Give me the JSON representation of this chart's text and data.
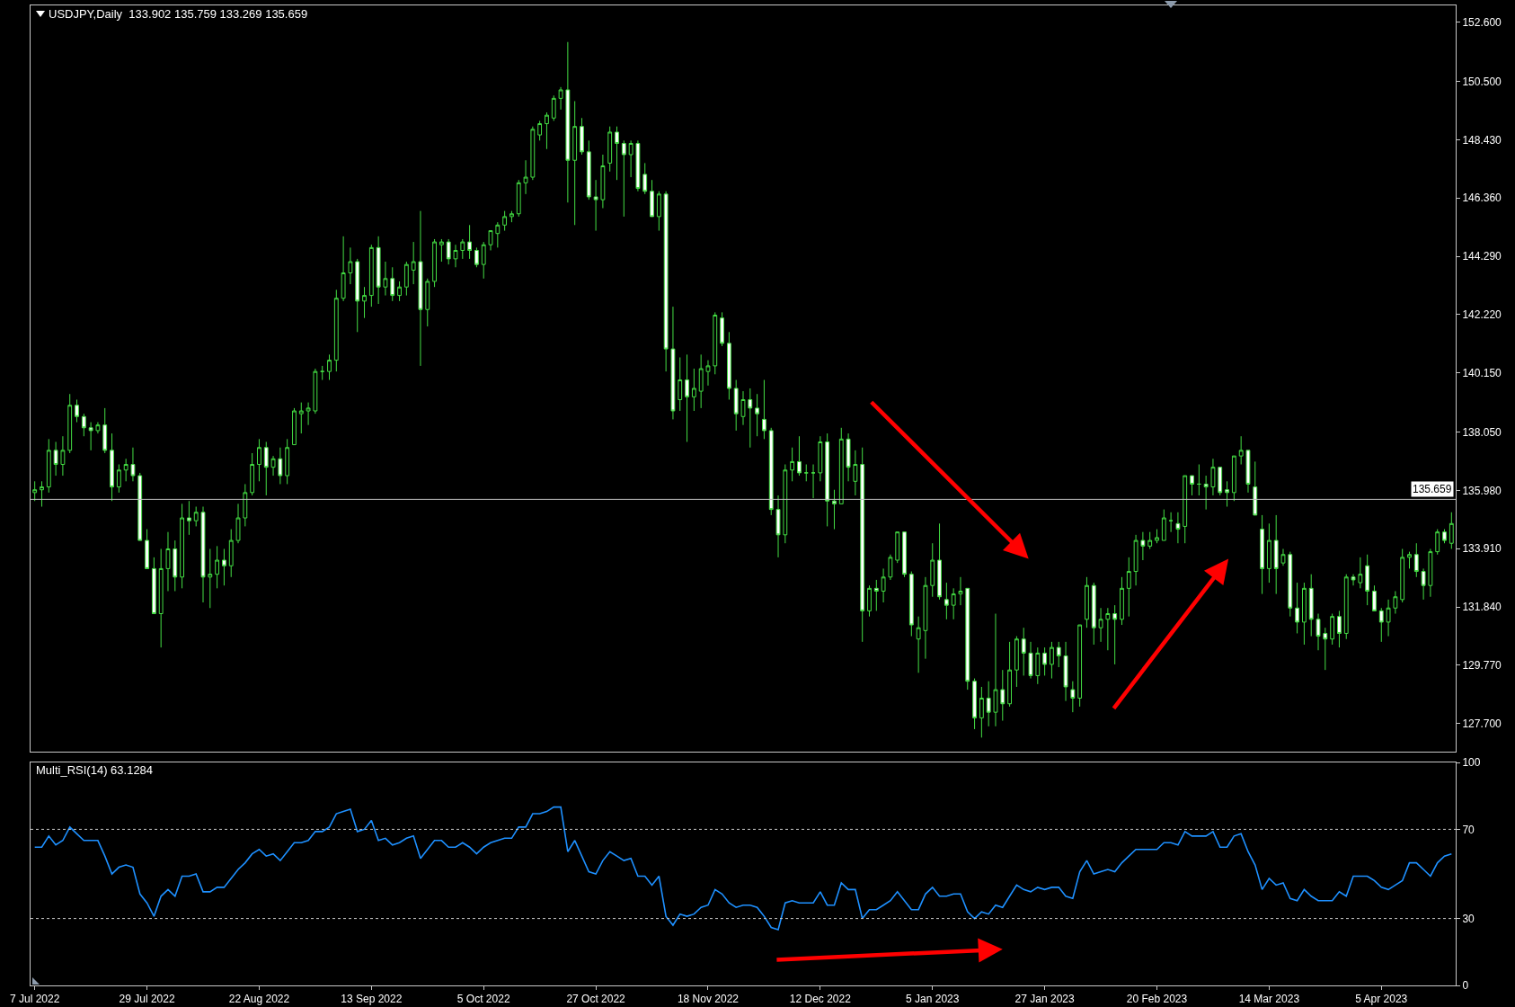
{
  "chart_data": [
    {
      "type": "candlestick",
      "title": "USDJPY,Daily  133.902 135.759 133.269 135.659",
      "categories": [
        null,
        null,
        null,
        null,
        null,
        null,
        null,
        null,
        null,
        null,
        null,
        null,
        null,
        null,
        null,
        null,
        null,
        null,
        null,
        null,
        null,
        null,
        null,
        null,
        null,
        null,
        null,
        null,
        null,
        null,
        null,
        null,
        null,
        null,
        null,
        null,
        null,
        null,
        null,
        null,
        null,
        null,
        null,
        null,
        null,
        null,
        null,
        null,
        null,
        null,
        null,
        null,
        null,
        null,
        null,
        null,
        null,
        null,
        null,
        null,
        null,
        null,
        null,
        null,
        null,
        null,
        null,
        null,
        null,
        null,
        null,
        null,
        null,
        null,
        null,
        null,
        null,
        null,
        null,
        null,
        null,
        null,
        null,
        null,
        null,
        null,
        null,
        null,
        null,
        null,
        null,
        null,
        null,
        null,
        null,
        null,
        null,
        null,
        null,
        null,
        null,
        null,
        null,
        null,
        null,
        null,
        null,
        null,
        null,
        null,
        null,
        null,
        null,
        null,
        null,
        null,
        null,
        null,
        null,
        null,
        null,
        null,
        null,
        null,
        null,
        null,
        null,
        null,
        null,
        null,
        null,
        null,
        null,
        null,
        null,
        null,
        null,
        null,
        null,
        null,
        null,
        null,
        null,
        null,
        null,
        null,
        null,
        null,
        null,
        null,
        null,
        null,
        null,
        null,
        null,
        null,
        null,
        null,
        null,
        null,
        null,
        null,
        null,
        null,
        null,
        null,
        null,
        null,
        null,
        null,
        null,
        null,
        null,
        null,
        null,
        null,
        null,
        null,
        null,
        null,
        null,
        null,
        null,
        null,
        null,
        null,
        null,
        null,
        null,
        null,
        null,
        null,
        null,
        null,
        null,
        null,
        null,
        null,
        null,
        null,
        null,
        null,
        null
      ],
      "ohlc": [
        [
          135.9,
          136.3,
          135.6,
          136.0
        ],
        [
          136.0,
          136.3,
          135.4,
          136.1
        ],
        [
          136.1,
          137.8,
          135.9,
          137.4
        ],
        [
          137.4,
          137.7,
          136.5,
          136.9
        ],
        [
          136.9,
          137.9,
          136.5,
          137.4
        ],
        [
          137.4,
          139.4,
          137.3,
          139.0
        ],
        [
          139.0,
          139.2,
          138.4,
          138.6
        ],
        [
          138.6,
          138.7,
          137.9,
          138.2
        ],
        [
          138.2,
          138.4,
          137.4,
          138.1
        ],
        [
          138.1,
          138.4,
          138.0,
          138.3
        ],
        [
          138.3,
          138.9,
          137.3,
          137.4
        ],
        [
          137.4,
          138.0,
          135.6,
          136.1
        ],
        [
          136.1,
          136.9,
          135.9,
          136.7
        ],
        [
          136.7,
          137.1,
          136.3,
          136.9
        ],
        [
          136.9,
          137.5,
          136.3,
          136.5
        ],
        [
          136.5,
          136.6,
          134.2,
          134.2
        ],
        [
          134.2,
          134.6,
          133.2,
          133.2
        ],
        [
          133.2,
          133.6,
          131.6,
          131.6
        ],
        [
          131.6,
          133.9,
          130.4,
          133.2
        ],
        [
          133.2,
          134.5,
          132.4,
          133.9
        ],
        [
          133.9,
          134.2,
          132.4,
          132.9
        ],
        [
          132.9,
          135.5,
          132.5,
          135.0
        ],
        [
          135.0,
          135.6,
          134.4,
          134.9
        ],
        [
          134.9,
          135.4,
          134.7,
          135.2
        ],
        [
          135.2,
          135.4,
          132.0,
          132.9
        ],
        [
          132.9,
          133.9,
          131.8,
          133.0
        ],
        [
          133.0,
          134.0,
          132.5,
          133.5
        ],
        [
          133.5,
          133.9,
          132.6,
          133.3
        ],
        [
          133.3,
          134.6,
          132.9,
          134.2
        ],
        [
          134.2,
          135.5,
          134.1,
          135.0
        ],
        [
          135.0,
          136.2,
          134.7,
          135.9
        ],
        [
          135.9,
          137.3,
          135.8,
          136.9
        ],
        [
          136.9,
          137.8,
          136.3,
          137.5
        ],
        [
          137.5,
          137.7,
          135.8,
          136.8
        ],
        [
          136.8,
          137.2,
          136.5,
          137.1
        ],
        [
          137.1,
          137.5,
          136.2,
          136.5
        ],
        [
          136.5,
          137.8,
          136.2,
          137.5
        ],
        [
          137.6,
          138.9,
          137.6,
          138.8
        ],
        [
          138.7,
          139.1,
          138.0,
          138.8
        ],
        [
          138.8,
          139.1,
          138.3,
          138.9
        ],
        [
          138.8,
          140.3,
          138.7,
          140.2
        ],
        [
          140.2,
          140.4,
          139.9,
          140.2
        ],
        [
          140.2,
          140.8,
          139.9,
          140.6
        ],
        [
          140.6,
          143.1,
          140.2,
          142.8
        ],
        [
          142.8,
          145.0,
          142.7,
          143.7
        ],
        [
          143.7,
          144.6,
          143.3,
          144.1
        ],
        [
          144.1,
          144.2,
          141.6,
          142.7
        ],
        [
          142.7,
          143.2,
          142.1,
          142.9
        ],
        [
          142.9,
          144.7,
          142.5,
          144.6
        ],
        [
          144.6,
          145.0,
          142.6,
          143.2
        ],
        [
          143.2,
          144.1,
          142.9,
          143.5
        ],
        [
          143.5,
          143.9,
          142.7,
          142.9
        ],
        [
          142.9,
          143.4,
          142.7,
          143.2
        ],
        [
          143.2,
          144.1,
          142.9,
          144.0
        ],
        [
          143.8,
          144.8,
          143.3,
          144.1
        ],
        [
          144.1,
          145.9,
          140.4,
          142.4
        ],
        [
          142.4,
          143.5,
          141.8,
          143.4
        ],
        [
          143.4,
          144.9,
          143.2,
          144.8
        ],
        [
          144.7,
          144.9,
          144.1,
          144.8
        ],
        [
          144.8,
          144.9,
          144.0,
          144.2
        ],
        [
          144.2,
          144.7,
          143.9,
          144.5
        ],
        [
          144.5,
          144.9,
          144.2,
          144.8
        ],
        [
          144.8,
          145.4,
          144.2,
          144.5
        ],
        [
          144.5,
          144.6,
          143.9,
          144.0
        ],
        [
          144.0,
          144.8,
          143.5,
          144.7
        ],
        [
          144.7,
          145.2,
          144.5,
          145.2
        ],
        [
          145.1,
          145.5,
          144.6,
          145.4
        ],
        [
          145.4,
          145.9,
          145.2,
          145.7
        ],
        [
          145.7,
          145.9,
          145.5,
          145.8
        ],
        [
          145.8,
          147.0,
          145.7,
          146.9
        ],
        [
          146.9,
          147.7,
          146.5,
          147.1
        ],
        [
          147.1,
          148.9,
          147.0,
          148.8
        ],
        [
          148.6,
          149.1,
          148.4,
          149.0
        ],
        [
          149.0,
          149.4,
          148.1,
          149.3
        ],
        [
          149.2,
          150.0,
          149.1,
          149.9
        ],
        [
          149.9,
          150.3,
          149.5,
          150.2
        ],
        [
          150.2,
          151.9,
          146.2,
          147.7
        ],
        [
          147.7,
          149.8,
          145.4,
          148.9
        ],
        [
          148.9,
          149.2,
          147.9,
          148.0
        ],
        [
          148.0,
          148.4,
          146.3,
          146.4
        ],
        [
          146.4,
          147.0,
          145.2,
          146.3
        ],
        [
          146.3,
          147.9,
          146.0,
          147.5
        ],
        [
          147.6,
          148.9,
          147.3,
          148.7
        ],
        [
          148.7,
          148.9,
          147.0,
          148.3
        ],
        [
          148.3,
          148.4,
          145.7,
          147.9
        ],
        [
          147.9,
          148.4,
          147.1,
          148.3
        ],
        [
          148.3,
          148.4,
          146.6,
          146.7
        ],
        [
          147.2,
          147.6,
          146.5,
          146.6
        ],
        [
          146.6,
          147.0,
          145.7,
          145.7
        ],
        [
          145.7,
          146.6,
          145.2,
          146.5
        ],
        [
          146.5,
          146.6,
          140.2,
          141.0
        ],
        [
          141.0,
          142.5,
          138.5,
          138.8
        ],
        [
          139.2,
          140.7,
          138.8,
          139.9
        ],
        [
          139.9,
          140.8,
          137.7,
          139.3
        ],
        [
          139.3,
          140.3,
          138.8,
          139.6
        ],
        [
          139.5,
          140.8,
          138.9,
          140.3
        ],
        [
          140.2,
          140.6,
          139.7,
          140.4
        ],
        [
          140.4,
          142.3,
          140.1,
          142.2
        ],
        [
          142.1,
          142.3,
          141.1,
          141.2
        ],
        [
          141.2,
          141.6,
          139.2,
          139.6
        ],
        [
          139.6,
          139.9,
          138.1,
          138.7
        ],
        [
          138.6,
          139.5,
          138.3,
          139.2
        ],
        [
          139.2,
          139.6,
          137.5,
          138.9
        ],
        [
          138.9,
          139.4,
          137.9,
          138.7
        ],
        [
          138.5,
          139.9,
          137.8,
          138.1
        ],
        [
          138.1,
          138.2,
          135.1,
          135.3
        ],
        [
          135.3,
          135.8,
          133.6,
          134.4
        ],
        [
          134.4,
          136.9,
          134.1,
          136.7
        ],
        [
          136.7,
          137.5,
          136.3,
          137.0
        ],
        [
          137.0,
          137.9,
          136.5,
          136.6
        ],
        [
          136.6,
          136.9,
          136.3,
          136.6
        ],
        [
          136.6,
          136.9,
          135.7,
          136.6
        ],
        [
          136.6,
          137.9,
          136.3,
          137.7
        ],
        [
          137.7,
          138.0,
          134.7,
          135.6
        ],
        [
          135.6,
          136.0,
          134.6,
          135.5
        ],
        [
          135.5,
          138.2,
          135.5,
          137.8
        ],
        [
          137.8,
          138.0,
          136.3,
          136.8
        ],
        [
          136.3,
          137.4,
          135.8,
          136.9
        ],
        [
          136.9,
          137.5,
          130.6,
          131.7
        ],
        [
          131.7,
          132.6,
          131.5,
          132.5
        ],
        [
          132.5,
          132.8,
          131.7,
          132.4
        ],
        [
          132.4,
          133.2,
          132.0,
          132.9
        ],
        [
          132.9,
          133.7,
          132.8,
          133.6
        ],
        [
          133.5,
          134.5,
          133.4,
          134.5
        ],
        [
          134.5,
          134.5,
          132.9,
          133.0
        ],
        [
          133.0,
          133.1,
          130.8,
          131.2
        ],
        [
          130.7,
          131.5,
          129.5,
          131.1
        ],
        [
          131.0,
          132.9,
          130.0,
          132.6
        ],
        [
          132.6,
          134.1,
          132.2,
          133.5
        ],
        [
          133.5,
          134.8,
          132.1,
          132.2
        ],
        [
          132.1,
          132.7,
          131.4,
          131.9
        ],
        [
          131.9,
          132.5,
          131.4,
          132.3
        ],
        [
          132.3,
          132.9,
          131.9,
          132.4
        ],
        [
          132.5,
          132.5,
          128.9,
          129.2
        ],
        [
          129.2,
          129.3,
          127.5,
          127.9
        ],
        [
          127.9,
          129.0,
          127.2,
          128.6
        ],
        [
          128.6,
          129.2,
          127.6,
          128.1
        ],
        [
          128.1,
          131.6,
          127.6,
          128.9
        ],
        [
          128.9,
          129.6,
          127.8,
          128.4
        ],
        [
          128.4,
          130.6,
          128.3,
          129.6
        ],
        [
          129.6,
          130.8,
          129.0,
          130.7
        ],
        [
          130.7,
          131.1,
          129.4,
          130.2
        ],
        [
          130.2,
          130.6,
          129.3,
          129.4
        ],
        [
          129.4,
          130.4,
          129.1,
          130.2
        ],
        [
          130.2,
          130.4,
          129.4,
          129.8
        ],
        [
          129.8,
          130.6,
          129.3,
          130.4
        ],
        [
          130.4,
          130.6,
          129.7,
          130.1
        ],
        [
          130.1,
          130.6,
          128.5,
          129.0
        ],
        [
          128.9,
          129.2,
          128.1,
          128.6
        ],
        [
          128.6,
          131.2,
          128.3,
          131.2
        ],
        [
          131.4,
          132.9,
          131.1,
          132.6
        ],
        [
          132.6,
          132.7,
          130.5,
          131.1
        ],
        [
          131.1,
          131.8,
          130.6,
          131.4
        ],
        [
          131.4,
          131.8,
          130.3,
          131.6
        ],
        [
          131.6,
          131.9,
          129.8,
          131.4
        ],
        [
          131.4,
          132.9,
          131.2,
          132.5
        ],
        [
          132.5,
          133.6,
          131.5,
          133.1
        ],
        [
          133.1,
          134.4,
          132.6,
          134.2
        ],
        [
          134.2,
          134.5,
          133.5,
          134.0
        ],
        [
          134.0,
          134.5,
          133.9,
          134.2
        ],
        [
          134.2,
          134.6,
          134.1,
          134.3
        ],
        [
          134.2,
          135.3,
          134.2,
          135.0
        ],
        [
          134.9,
          135.2,
          134.5,
          134.9
        ],
        [
          134.8,
          135.2,
          134.1,
          134.6
        ],
        [
          134.7,
          136.5,
          134.1,
          136.5
        ],
        [
          136.5,
          136.5,
          135.8,
          136.2
        ],
        [
          136.2,
          136.9,
          135.8,
          136.2
        ],
        [
          136.2,
          136.5,
          135.3,
          136.1
        ],
        [
          136.1,
          137.1,
          135.8,
          136.8
        ],
        [
          136.8,
          136.8,
          135.8,
          135.9
        ],
        [
          136.0,
          136.3,
          135.4,
          135.9
        ],
        [
          135.9,
          137.2,
          135.6,
          137.2
        ],
        [
          137.2,
          137.9,
          136.9,
          137.4
        ],
        [
          137.4,
          137.4,
          135.9,
          136.2
        ],
        [
          136.1,
          137.0,
          135.1,
          135.1
        ],
        [
          134.6,
          135.1,
          132.3,
          133.2
        ],
        [
          133.2,
          134.8,
          132.7,
          134.2
        ],
        [
          134.2,
          135.1,
          132.3,
          133.2
        ],
        [
          133.4,
          133.9,
          133.3,
          133.7
        ],
        [
          133.7,
          133.8,
          131.5,
          131.8
        ],
        [
          131.8,
          132.7,
          130.9,
          131.3
        ],
        [
          131.3,
          132.7,
          130.5,
          132.5
        ],
        [
          132.5,
          133.0,
          130.8,
          131.4
        ],
        [
          131.4,
          131.6,
          130.3,
          130.8
        ],
        [
          130.9,
          131.1,
          129.6,
          130.7
        ],
        [
          130.7,
          131.6,
          130.5,
          131.5
        ],
        [
          131.5,
          131.7,
          130.4,
          130.9
        ],
        [
          130.9,
          133.0,
          130.7,
          132.9
        ],
        [
          132.9,
          133.0,
          132.6,
          132.8
        ],
        [
          132.7,
          133.6,
          132.5,
          133.0
        ],
        [
          133.3,
          133.7,
          131.9,
          132.4
        ],
        [
          132.4,
          132.6,
          131.7,
          131.7
        ],
        [
          131.7,
          131.8,
          130.6,
          131.3
        ],
        [
          131.3,
          132.1,
          130.8,
          131.8
        ],
        [
          131.8,
          132.4,
          131.6,
          132.2
        ],
        [
          132.1,
          133.9,
          132.0,
          133.6
        ],
        [
          133.6,
          133.8,
          133.2,
          133.7
        ],
        [
          133.7,
          134.1,
          132.9,
          133.1
        ],
        [
          133.1,
          133.2,
          132.1,
          132.6
        ],
        [
          132.6,
          133.9,
          132.2,
          133.8
        ],
        [
          133.8,
          134.6,
          133.7,
          134.5
        ],
        [
          134.5,
          134.6,
          134.1,
          134.2
        ],
        [
          134.1,
          135.2,
          133.9,
          134.8
        ]
      ],
      "color": "#44dd44",
      "ylim": [
        126.7,
        153.2
      ],
      "yticks": [
        {
          "value": 127.7,
          "label": "127.700"
        },
        {
          "value": 129.77,
          "label": "129.770"
        },
        {
          "value": 131.84,
          "label": "131.840"
        },
        {
          "value": 133.91,
          "label": "133.910"
        },
        {
          "value": 135.98,
          "label": "135.980"
        },
        {
          "value": 138.05,
          "label": "138.050"
        },
        {
          "value": 140.15,
          "label": "140.150"
        },
        {
          "value": 142.22,
          "label": "142.220"
        },
        {
          "value": 144.29,
          "label": "144.290"
        },
        {
          "value": 146.36,
          "label": "146.360"
        },
        {
          "value": 148.43,
          "label": "148.430"
        },
        {
          "value": 150.5,
          "label": "150.500"
        },
        {
          "value": 152.6,
          "label": "152.600"
        }
      ],
      "ref_lines": [
        {
          "axis": "y",
          "value": 135.659,
          "label": "135.659",
          "color": "#c0c0c0"
        }
      ],
      "tick_labels": "y"
    },
    {
      "type": "line",
      "title": "Multi_RSI(14) 63.1284",
      "categories": [
        "7 Jul 2022",
        null,
        null,
        null,
        null,
        null,
        null,
        null,
        null,
        null,
        null,
        null,
        null,
        null,
        null,
        null,
        "29 Jul 2022",
        null,
        null,
        null,
        null,
        null,
        null,
        null,
        null,
        null,
        null,
        null,
        null,
        null,
        null,
        null,
        "22 Aug 2022",
        null,
        null,
        null,
        null,
        null,
        null,
        null,
        null,
        null,
        null,
        null,
        null,
        null,
        null,
        null,
        "13 Sep 2022",
        null,
        null,
        null,
        null,
        null,
        null,
        null,
        null,
        null,
        null,
        null,
        null,
        null,
        null,
        null,
        "5 Oct 2022",
        null,
        null,
        null,
        null,
        null,
        null,
        null,
        null,
        null,
        null,
        null,
        null,
        null,
        null,
        null,
        "27 Oct 2022",
        null,
        null,
        null,
        null,
        null,
        null,
        null,
        null,
        null,
        null,
        null,
        null,
        null,
        null,
        null,
        "18 Nov 2022",
        null,
        null,
        null,
        null,
        null,
        null,
        null,
        null,
        null,
        null,
        null,
        null,
        null,
        null,
        null,
        "12 Dec 2022",
        null,
        null,
        null,
        null,
        null,
        null,
        null,
        null,
        null,
        null,
        null,
        null,
        null,
        null,
        null,
        "5 Jan 2023",
        null,
        null,
        null,
        null,
        null,
        null,
        null,
        null,
        null,
        null,
        null,
        null,
        null,
        null,
        null,
        "27 Jan 2023",
        null,
        null,
        null,
        null,
        null,
        null,
        null,
        null,
        null,
        null,
        null,
        null,
        null,
        null,
        null,
        "20 Feb 2023",
        null,
        null,
        null,
        null,
        null,
        null,
        null,
        null,
        null,
        null,
        null,
        null,
        null,
        null,
        null,
        "14 Mar 2023",
        null,
        null,
        null,
        null,
        null,
        null,
        null,
        null,
        null,
        null,
        null,
        null,
        null,
        null,
        null,
        "5 Apr 2023",
        null,
        null,
        null,
        null,
        null,
        null,
        null,
        null,
        null,
        null
      ],
      "series": [
        {
          "color": "#1e90ff",
          "values": [
            62,
            62,
            67,
            63,
            65,
            71,
            68,
            65,
            65,
            65,
            58,
            50,
            53,
            54,
            53,
            41,
            37,
            31,
            40,
            43,
            40,
            49,
            49,
            50,
            42,
            42,
            44,
            44,
            48,
            52,
            55,
            59,
            61,
            58,
            59,
            56,
            60,
            64,
            64,
            65,
            69,
            69,
            71,
            77,
            78,
            79,
            69,
            70,
            74,
            65,
            66,
            63,
            64,
            66,
            67,
            57,
            61,
            65,
            65,
            62,
            62,
            64,
            62,
            59,
            62,
            64,
            65,
            66,
            66,
            71,
            71,
            77,
            77,
            78,
            80,
            80,
            60,
            65,
            58,
            51,
            50,
            56,
            60,
            58,
            56,
            57,
            49,
            49,
            45,
            49,
            31,
            27,
            32,
            31,
            32,
            35,
            36,
            43,
            41,
            37,
            35,
            36,
            36,
            35,
            31,
            26,
            25,
            37,
            38,
            37,
            37,
            37,
            42,
            36,
            36,
            46,
            43,
            43,
            30,
            34,
            34,
            36,
            38,
            42,
            38,
            34,
            34,
            41,
            44,
            40,
            40,
            41,
            41,
            33,
            30,
            33,
            32,
            36,
            35,
            40,
            45,
            43,
            42,
            44,
            43,
            44,
            44,
            40,
            39,
            51,
            56,
            50,
            51,
            52,
            51,
            55,
            58,
            61,
            61,
            61,
            61,
            64,
            64,
            63,
            69,
            67,
            67,
            67,
            69,
            62,
            62,
            67,
            68,
            60,
            54,
            43,
            48,
            45,
            46,
            39,
            38,
            43,
            40,
            38,
            38,
            38,
            42,
            40,
            49,
            49,
            49,
            47,
            44,
            43,
            45,
            47,
            55,
            55,
            52,
            49,
            55,
            58,
            59
          ]
        }
      ],
      "ylim": [
        0,
        100
      ],
      "yticks": [
        0,
        30,
        70,
        100
      ],
      "ref_lines": [
        {
          "axis": "y",
          "value": 70,
          "color": "#c8c8c8",
          "line_style": "dotted"
        },
        {
          "axis": "y",
          "value": 30,
          "color": "#c8c8c8",
          "line_style": "dotted"
        }
      ]
    }
  ]
}
